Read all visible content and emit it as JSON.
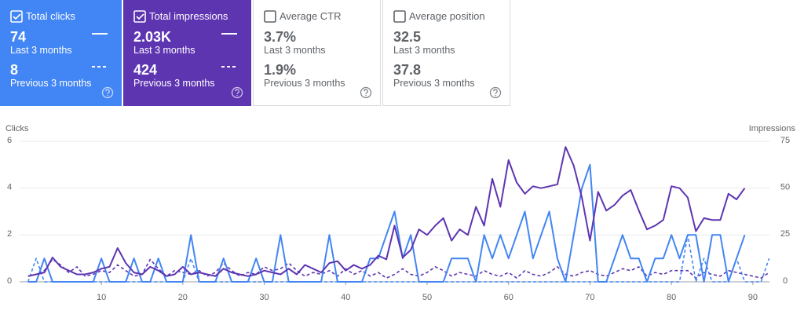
{
  "cards": [
    {
      "label": "Total clicks",
      "value": "74",
      "period": "Last 3 months",
      "previous_value": "8",
      "previous_period": "Previous 3 months",
      "selected": true,
      "color": "#4285f4",
      "line_style": "solid"
    },
    {
      "label": "Total impressions",
      "value": "2.03K",
      "period": "Last 3 months",
      "previous_value": "424",
      "previous_period": "Previous 3 months",
      "selected": true,
      "color": "#5e35b1"
    },
    {
      "label": "Average CTR",
      "value": "3.7%",
      "period": "Last 3 months",
      "previous_value": "1.9%",
      "previous_period": "Previous 3 months",
      "selected": false,
      "color": "#ffffff"
    },
    {
      "label": "Average position",
      "value": "32.5",
      "period": "Last 3 months",
      "previous_value": "37.8",
      "previous_period": "Previous 3 months",
      "selected": false,
      "color": "#ffffff"
    }
  ],
  "chart_data": {
    "type": "line",
    "ylabel": "Clicks",
    "y2label": "Impressions",
    "x": [
      1,
      2,
      3,
      4,
      5,
      6,
      7,
      8,
      9,
      10,
      11,
      12,
      13,
      14,
      15,
      16,
      17,
      18,
      19,
      20,
      21,
      22,
      23,
      24,
      25,
      26,
      27,
      28,
      29,
      30,
      31,
      32,
      33,
      34,
      35,
      36,
      37,
      38,
      39,
      40,
      41,
      42,
      43,
      44,
      45,
      46,
      47,
      48,
      49,
      50,
      51,
      52,
      53,
      54,
      55,
      56,
      57,
      58,
      59,
      60,
      61,
      62,
      63,
      64,
      65,
      66,
      67,
      68,
      69,
      70,
      71,
      72,
      73,
      74,
      75,
      76,
      77,
      78,
      79,
      80,
      81,
      82,
      83,
      84,
      85,
      86,
      87,
      88,
      89,
      90,
      91,
      92
    ],
    "xlim": [
      -1,
      93
    ],
    "xticks": [
      10,
      20,
      30,
      40,
      50,
      60,
      70,
      80,
      90
    ],
    "ylim": [
      0,
      6
    ],
    "yticks": [
      0,
      2,
      4,
      6
    ],
    "y2lim": [
      0,
      75
    ],
    "y2ticks": [
      0,
      25,
      50,
      75
    ],
    "grid": true,
    "series": [
      {
        "color": "#5e35b1",
        "dashed": true,
        "axis": "y2",
        "values": [
          3,
          4,
          6,
          12,
          9,
          5,
          8,
          3,
          4,
          6,
          5,
          9,
          6,
          3,
          4,
          12,
          7,
          3,
          6,
          5,
          4,
          6,
          3,
          5,
          10,
          6,
          3,
          5,
          4,
          8,
          6,
          7,
          10,
          6,
          3,
          5,
          4,
          6,
          3,
          7,
          4,
          6,
          3,
          5,
          2,
          4,
          7,
          4,
          3,
          5,
          8,
          6,
          3,
          5,
          4,
          3,
          6,
          4,
          3,
          5,
          2,
          6,
          4,
          3,
          5,
          8,
          4,
          3,
          5,
          6,
          4,
          3,
          5,
          7,
          6,
          8,
          3,
          5,
          4,
          6,
          6,
          6,
          2,
          5,
          4,
          3,
          6,
          5,
          4,
          3,
          2,
          5
        ]
      },
      {
        "color": "#4285f4",
        "dashed": true,
        "values": [
          0,
          1,
          0,
          0,
          0,
          0,
          0,
          0,
          0,
          0,
          0,
          0,
          0,
          0,
          0,
          0,
          0,
          0,
          0,
          0,
          1,
          0,
          0,
          0,
          0,
          0,
          0,
          0,
          0,
          0,
          0,
          0,
          0,
          0,
          0,
          0,
          0,
          0,
          0,
          0,
          0,
          0,
          0,
          0,
          0,
          0,
          0,
          0,
          0,
          0,
          0,
          0,
          0,
          0,
          0,
          0,
          0,
          0,
          0,
          0,
          0,
          0,
          0,
          0,
          0,
          0,
          0,
          0,
          0,
          0,
          0,
          0,
          0,
          0,
          0,
          0,
          0,
          0,
          0,
          0,
          0,
          2,
          0,
          1,
          0,
          0,
          0,
          1,
          0,
          0,
          0,
          1
        ]
      },
      {
        "color": "#4285f4",
        "dashed": false,
        "values": [
          0,
          0,
          1,
          0,
          0,
          0,
          0,
          0,
          0,
          1,
          0,
          0,
          0,
          1,
          0,
          0,
          1,
          0,
          0,
          0,
          2,
          0,
          0,
          0,
          1,
          0,
          0,
          0,
          1,
          0,
          0,
          2,
          0,
          0,
          0,
          0,
          0,
          2,
          0,
          0,
          0,
          0,
          1,
          1,
          2,
          3,
          1,
          2,
          0,
          0,
          0,
          0,
          1,
          1,
          1,
          0,
          2,
          1,
          2,
          1,
          2,
          3,
          1,
          2,
          3,
          1,
          0,
          2,
          4,
          5,
          0,
          0,
          1,
          2,
          1,
          1,
          0,
          1,
          1,
          2,
          1,
          2,
          2,
          0,
          2,
          2,
          0,
          1,
          2,
          null,
          null,
          null
        ]
      },
      {
        "color": "#5e35b1",
        "dashed": false,
        "axis": "y2",
        "values": [
          3,
          4,
          5,
          13,
          8,
          6,
          4,
          4,
          5,
          7,
          8,
          18,
          10,
          5,
          4,
          8,
          6,
          3,
          4,
          8,
          4,
          5,
          4,
          3,
          7,
          5,
          4,
          3,
          4,
          6,
          5,
          4,
          7,
          4,
          9,
          7,
          5,
          10,
          11,
          6,
          9,
          7,
          9,
          14,
          12,
          30,
          13,
          17,
          28,
          25,
          30,
          34,
          22,
          28,
          25,
          40,
          30,
          55,
          40,
          65,
          53,
          47,
          51,
          50,
          51,
          52,
          72,
          62,
          45,
          22,
          48,
          38,
          41,
          46,
          49,
          38,
          28,
          30,
          33,
          51,
          50,
          45,
          27,
          34,
          33,
          33,
          47,
          44,
          50,
          null,
          null,
          null
        ]
      }
    ]
  }
}
